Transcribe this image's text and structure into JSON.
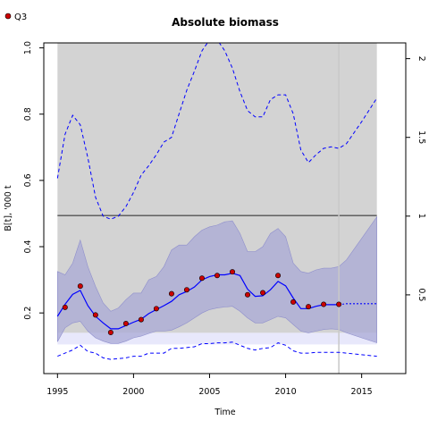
{
  "chart_data": {
    "type": "line",
    "title": "Absolute biomass",
    "xlabel": "Time",
    "ylabel": "B[t], '000 t",
    "xlim": [
      1994.1,
      2017.9
    ],
    "ylim": [
      0.017,
      1.015
    ],
    "y2lim": [
      0,
      2.1
    ],
    "xticks": [
      1995,
      2000,
      2005,
      2010,
      2015
    ],
    "yticks": [
      0.2,
      0.4,
      0.6,
      0.8,
      1.0
    ],
    "y2ticks": [
      0.5,
      1,
      1.5,
      2
    ],
    "grid": false,
    "legend": {
      "position": "top-left",
      "entries": [
        "Q3"
      ]
    },
    "reference_line": 0.494,
    "lower_band_bottom": 0.105,
    "lower_band_top": 0.14,
    "shaded_region": {
      "x": [
        1995,
        2016
      ]
    },
    "vertical_line": 2013.5,
    "colors": {
      "shaded": "#d3d3d3",
      "ci_band": "#a9a9d6",
      "estimate": "#0000ff",
      "observations": "#cc0000",
      "reference": "#555555",
      "vertical_line": "#c8c8c8"
    },
    "series": [
      {
        "name": "Q3",
        "role": "observations",
        "x": [
          1995.5,
          1996.5,
          1997.5,
          1998.5,
          1999.5,
          2000.5,
          2001.5,
          2002.5,
          2003.5,
          2004.5,
          2005.5,
          2006.5,
          2007.5,
          2008.5,
          2009.5,
          2010.5,
          2011.5,
          2012.5,
          2013.5
        ],
        "y": [
          0.217,
          0.281,
          0.194,
          0.141,
          0.168,
          0.18,
          0.213,
          0.258,
          0.27,
          0.305,
          0.313,
          0.324,
          0.255,
          0.261,
          0.313,
          0.233,
          0.219,
          0.226,
          0.226
        ]
      },
      {
        "role": "estimate",
        "x": [
          1995,
          1995.5,
          1996,
          1996.5,
          1997,
          1997.5,
          1998,
          1998.5,
          1999,
          1999.5,
          2000,
          2000.5,
          2001,
          2001.5,
          2002,
          2002.5,
          2003,
          2003.5,
          2004,
          2004.5,
          2005,
          2005.5,
          2006,
          2006.5,
          2007,
          2007.5,
          2008,
          2008.5,
          2009,
          2009.5,
          2010,
          2010.5,
          2011,
          2011.5,
          2012,
          2012.5,
          2013,
          2013.5
        ],
        "y": [
          0.19,
          0.226,
          0.256,
          0.268,
          0.222,
          0.19,
          0.17,
          0.152,
          0.152,
          0.162,
          0.172,
          0.181,
          0.198,
          0.21,
          0.222,
          0.235,
          0.255,
          0.265,
          0.278,
          0.3,
          0.31,
          0.315,
          0.315,
          0.32,
          0.313,
          0.272,
          0.25,
          0.252,
          0.27,
          0.295,
          0.282,
          0.245,
          0.213,
          0.213,
          0.22,
          0.225,
          0.225,
          0.225
        ]
      },
      {
        "role": "projection",
        "x": [
          2013.5,
          2014,
          2015,
          2016
        ],
        "y": [
          0.225,
          0.228,
          0.228,
          0.228
        ]
      },
      {
        "role": "ci-upper",
        "x": [
          1995,
          1995.5,
          1996,
          1996.5,
          1997,
          1997.5,
          1998,
          1998.5,
          1999,
          1999.5,
          2000,
          2000.5,
          2001,
          2001.5,
          2002,
          2002.5,
          2003,
          2003.5,
          2004,
          2004.5,
          2005,
          2005.5,
          2006,
          2006.5,
          2007,
          2007.5,
          2008,
          2008.5,
          2009,
          2009.5,
          2010,
          2010.5,
          2011,
          2011.5,
          2012,
          2012.5,
          2013,
          2013.5,
          2014,
          2015,
          2016
        ],
        "y": [
          0.325,
          0.315,
          0.35,
          0.42,
          0.34,
          0.28,
          0.23,
          0.205,
          0.215,
          0.24,
          0.26,
          0.26,
          0.3,
          0.31,
          0.34,
          0.39,
          0.405,
          0.405,
          0.43,
          0.45,
          0.46,
          0.465,
          0.475,
          0.478,
          0.44,
          0.385,
          0.385,
          0.4,
          0.44,
          0.455,
          0.43,
          0.35,
          0.325,
          0.32,
          0.33,
          0.335,
          0.335,
          0.34,
          0.36,
          0.425,
          0.49
        ]
      },
      {
        "role": "ci-lower",
        "x": [
          1995,
          1995.5,
          1996,
          1996.5,
          1997,
          1997.5,
          1998,
          1998.5,
          1999,
          1999.5,
          2000,
          2000.5,
          2001,
          2001.5,
          2002,
          2002.5,
          2003,
          2003.5,
          2004,
          2004.5,
          2005,
          2005.5,
          2006,
          2006.5,
          2007,
          2007.5,
          2008,
          2008.5,
          2009,
          2009.5,
          2010,
          2010.5,
          2011,
          2011.5,
          2012,
          2012.5,
          2013,
          2013.5,
          2014,
          2015,
          2016
        ],
        "y": [
          0.113,
          0.155,
          0.17,
          0.175,
          0.145,
          0.125,
          0.115,
          0.108,
          0.108,
          0.115,
          0.125,
          0.13,
          0.138,
          0.145,
          0.145,
          0.148,
          0.158,
          0.17,
          0.185,
          0.2,
          0.21,
          0.215,
          0.218,
          0.22,
          0.205,
          0.185,
          0.17,
          0.17,
          0.18,
          0.19,
          0.185,
          0.165,
          0.145,
          0.14,
          0.145,
          0.15,
          0.152,
          0.15,
          0.14,
          0.125,
          0.11
        ]
      },
      {
        "role": "dashed-upper",
        "axis": "right",
        "x": [
          1995,
          1995.5,
          1996,
          1996.5,
          1997,
          1997.5,
          1998,
          1998.5,
          1999,
          1999.5,
          2000,
          2000.5,
          2001,
          2001.5,
          2002,
          2002.5,
          2003,
          2003.5,
          2004,
          2004.5,
          2005,
          2005.5,
          2006,
          2006.5,
          2007,
          2007.5,
          2008,
          2008.5,
          2009,
          2009.5,
          2010,
          2010.5,
          2011,
          2011.5,
          2012,
          2012.5,
          2013,
          2013.5,
          2014,
          2015,
          2016
        ],
        "y": [
          1.24,
          1.52,
          1.64,
          1.58,
          1.37,
          1.12,
          1.0,
          0.98,
          1.0,
          1.06,
          1.15,
          1.26,
          1.32,
          1.39,
          1.47,
          1.5,
          1.65,
          1.8,
          1.92,
          2.05,
          2.12,
          2.12,
          2.05,
          1.94,
          1.79,
          1.67,
          1.63,
          1.63,
          1.74,
          1.77,
          1.77,
          1.65,
          1.42,
          1.34,
          1.39,
          1.43,
          1.44,
          1.43,
          1.46,
          1.6,
          1.75
        ]
      },
      {
        "role": "dashed-lower",
        "axis": "right",
        "x": [
          1995,
          1995.5,
          1996,
          1996.5,
          1997,
          1997.5,
          1998,
          1998.5,
          1999,
          1999.5,
          2000,
          2000.5,
          2001,
          2001.5,
          2002,
          2002.5,
          2003,
          2003.5,
          2004,
          2004.5,
          2005,
          2005.5,
          2006,
          2006.5,
          2007,
          2007.5,
          2008,
          2008.5,
          2009,
          2009.5,
          2010,
          2010.5,
          2011,
          2011.5,
          2012,
          2012.5,
          2013,
          2013.5,
          2014,
          2015,
          2016
        ],
        "y": [
          0.11,
          0.13,
          0.15,
          0.18,
          0.14,
          0.13,
          0.1,
          0.09,
          0.095,
          0.1,
          0.11,
          0.11,
          0.13,
          0.13,
          0.13,
          0.16,
          0.16,
          0.165,
          0.17,
          0.19,
          0.19,
          0.195,
          0.195,
          0.2,
          0.18,
          0.16,
          0.15,
          0.16,
          0.165,
          0.195,
          0.18,
          0.145,
          0.13,
          0.13,
          0.135,
          0.135,
          0.135,
          0.135,
          0.13,
          0.12,
          0.11
        ]
      }
    ]
  }
}
